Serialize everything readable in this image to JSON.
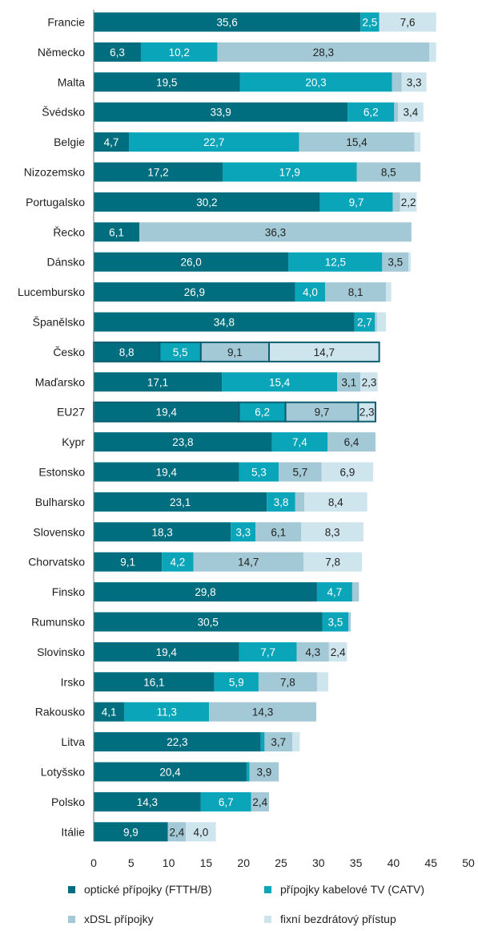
{
  "chart_data": {
    "type": "bar",
    "orientation": "horizontal",
    "stacked": true,
    "categories": [
      "Francie",
      "Německo",
      "Malta",
      "Švédsko",
      "Belgie",
      "Nizozemsko",
      "Portugalsko",
      "Řecko",
      "Dánsko",
      "Lucembursko",
      "Španělsko",
      "Česko",
      "Maďarsko",
      "EU27",
      "Kypr",
      "Estonsko",
      "Bulharsko",
      "Slovensko",
      "Chorvatsko",
      "Finsko",
      "Rumunsko",
      "Slovinsko",
      "Irsko",
      "Rakousko",
      "Litva",
      "Lotyšsko",
      "Polsko",
      "Itálie"
    ],
    "series": [
      {
        "name": "optické přípojky (FTTH/B)",
        "color": "#006e7f",
        "values": [
          35.6,
          6.3,
          19.5,
          33.9,
          4.7,
          17.2,
          30.2,
          6.1,
          26.0,
          26.9,
          34.8,
          8.8,
          17.1,
          19.4,
          23.8,
          19.4,
          23.1,
          18.3,
          9.1,
          29.8,
          30.5,
          19.4,
          16.1,
          4.1,
          22.3,
          20.4,
          14.3,
          9.9
        ],
        "labels": [
          "35,6",
          "6,3",
          "19,5",
          "33,9",
          "4,7",
          "17,2",
          "30,2",
          "6,1",
          "26,0",
          "26,9",
          "34,8",
          "8,8",
          "17,1",
          "19,4",
          "23,8",
          "19,4",
          "23,1",
          "18,3",
          "9,1",
          "29,8",
          "30,5",
          "19,4",
          "16,1",
          "4,1",
          "22,3",
          "20,4",
          "14,3",
          "9,9"
        ]
      },
      {
        "name": "přípojky kabelové TV (CATV)",
        "color": "#0aa5b9",
        "values": [
          2.5,
          10.2,
          20.3,
          6.2,
          22.7,
          17.9,
          9.7,
          0,
          12.5,
          4.0,
          2.7,
          5.5,
          15.4,
          6.2,
          7.4,
          5.3,
          3.8,
          3.3,
          4.2,
          4.7,
          3.5,
          7.7,
          5.9,
          11.3,
          0.5,
          0.4,
          6.7,
          0
        ],
        "labels": [
          "2,5",
          "10,2",
          "20,3",
          "6,2",
          "22,7",
          "17,9",
          "9,7",
          "",
          "12,5",
          "4,0",
          "2,7",
          "5,5",
          "15,4",
          "6,2",
          "7,4",
          "5,3",
          "3,8",
          "3,3",
          "4,2",
          "4,7",
          "3,5",
          "7,7",
          "5,9",
          "11,3",
          "",
          "",
          "6,7",
          ""
        ]
      },
      {
        "name": "xDSL přípojky",
        "color": "#a3c9d6",
        "values": [
          0,
          28.3,
          1.3,
          0.5,
          15.4,
          8.5,
          1.0,
          36.3,
          3.5,
          8.1,
          0.3,
          9.1,
          3.1,
          9.7,
          6.4,
          5.7,
          1.2,
          6.1,
          14.7,
          0.9,
          0.3,
          4.3,
          7.8,
          14.3,
          3.7,
          3.9,
          2.4,
          2.4
        ],
        "labels": [
          "",
          "28,3",
          "",
          "",
          "15,4",
          "8,5",
          "",
          "36,3",
          "3,5",
          "8,1",
          "",
          "9,1",
          "3,1",
          "9,7",
          "6,4",
          "5,7",
          "",
          "6,1",
          "14,7",
          "",
          "",
          "4,3",
          "7,8",
          "14,3",
          "3,7",
          "3,9",
          "2,4",
          "2,4"
        ]
      },
      {
        "name": "fixní bezdrátový přístup",
        "color": "#cfe5ee",
        "values": [
          7.6,
          0.9,
          3.3,
          3.4,
          0.8,
          0,
          2.2,
          0,
          0.3,
          0.7,
          1.2,
          14.7,
          2.3,
          2.3,
          0,
          6.9,
          8.4,
          8.3,
          7.8,
          0,
          0,
          2.4,
          1.5,
          0,
          1.0,
          0,
          0,
          4.0
        ],
        "labels": [
          "7,6",
          "",
          "3,3",
          "3,4",
          "",
          "",
          "2,2",
          "",
          "",
          "",
          "",
          "14,7",
          "2,3",
          "2,3",
          "",
          "6,9",
          "8,4",
          "8,3",
          "7,8",
          "",
          "",
          "2,4",
          "",
          "",
          "",
          "",
          "",
          "4,0"
        ]
      }
    ],
    "highlighted": [
      "Česko",
      "EU27"
    ],
    "xlim": [
      0,
      50
    ],
    "xticks": [
      "0",
      "5",
      "10",
      "15",
      "20",
      "25",
      "30",
      "35",
      "40",
      "45",
      "50"
    ],
    "grid": false,
    "legend_position": "bottom"
  }
}
